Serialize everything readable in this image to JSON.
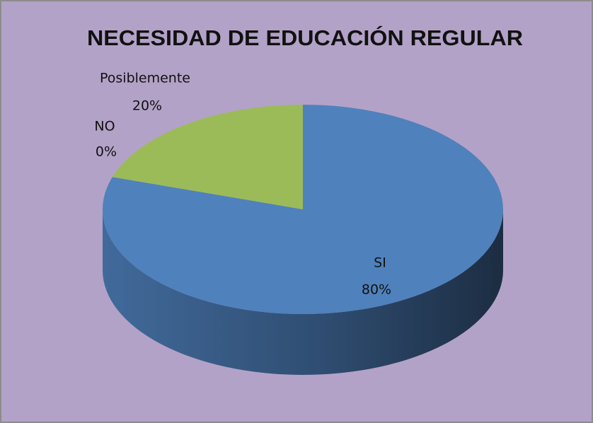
{
  "chart_data": {
    "type": "pie3d",
    "title": "NECESIDAD DE EDUCACIÓN REGULAR",
    "categories": [
      "SI",
      "NO",
      "Posiblemente"
    ],
    "values": [
      80,
      0,
      20
    ],
    "value_labels": [
      "80%",
      "0%",
      "20%"
    ],
    "colors": [
      "#4f81bd",
      "#c0504d",
      "#9bbb59"
    ],
    "background": "#b3a2c7"
  }
}
